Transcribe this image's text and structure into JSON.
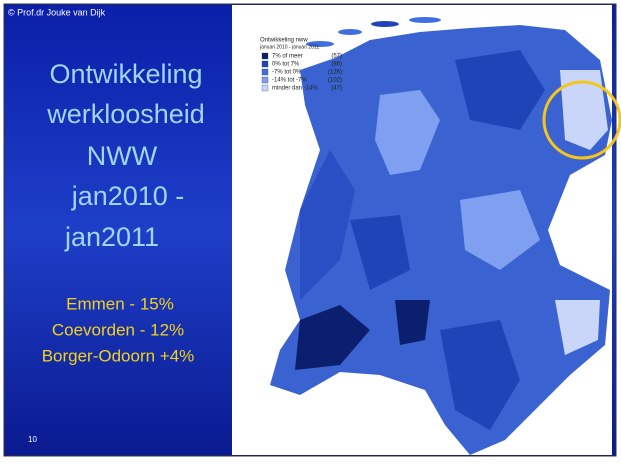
{
  "slide": {
    "copyright": "© Prof.dr Jouke van Dijk",
    "title_lines": [
      "Ontwikkeling",
      "werkloosheid",
      "NWW",
      "jan2010 -",
      "jan2011"
    ],
    "highlights": [
      "Emmen - 15%",
      "Coevorden - 12%",
      "Borger-Odoorn +4%"
    ],
    "page_number": "10"
  },
  "map": {
    "legend_title": "Ontwikkeling nww",
    "legend_subtitle": "januari 2010 - januari 2011",
    "legend": [
      {
        "label": "7% of meer",
        "count": "(57)",
        "color": "#0b1f6e"
      },
      {
        "label": "0% tot 7%",
        "count": "(86)",
        "color": "#1f44b8"
      },
      {
        "label": "-7% tot 0%",
        "count": "(126)",
        "color": "#3f6fe0"
      },
      {
        "label": "-14% tot -7%",
        "count": "(102)",
        "color": "#7f9ff0"
      },
      {
        "label": "minder dan -14%",
        "count": "(47)",
        "color": "#c9d6fa"
      }
    ]
  }
}
